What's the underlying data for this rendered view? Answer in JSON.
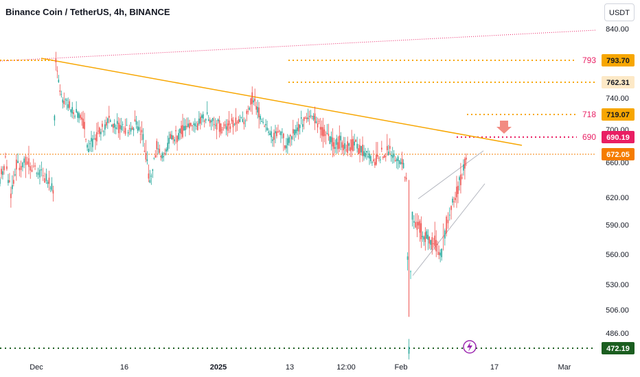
{
  "header": {
    "title": "Binance Coin / TetherUS, 4h, BINANCE",
    "currency": "USDT"
  },
  "chart_data": {
    "type": "candlestick",
    "symbol": "Binance Coin / TetherUS",
    "interval": "4h",
    "exchange": "BINANCE",
    "y_ticks": [
      "840.00",
      "740.00",
      "700.00",
      "660.00",
      "620.00",
      "590.00",
      "560.00",
      "530.00",
      "506.00",
      "486.00"
    ],
    "x_ticks": [
      "Dec",
      "16",
      "2025",
      "13",
      "12:00",
      "Feb",
      "17",
      "Mar"
    ],
    "price_labels": [
      {
        "value": "793.70",
        "bg": "#f7a600",
        "fg": "#131722"
      },
      {
        "value": "762.31",
        "bg": "#fde9c7",
        "fg": "#131722"
      },
      {
        "value": "719.07",
        "bg": "#f7a600",
        "fg": "#131722"
      },
      {
        "value": "690.19",
        "bg": "#e91e63",
        "fg": "#ffffff"
      },
      {
        "value": "672.05",
        "bg": "#f57c00",
        "fg": "#ffffff"
      },
      {
        "value": "472.19",
        "bg": "#1b5e20",
        "fg": "#ffffff"
      }
    ],
    "level_labels": [
      {
        "text": "793",
        "color": "#e91e63"
      },
      {
        "text": "718",
        "color": "#e91e63"
      },
      {
        "text": "690",
        "color": "#e91e63"
      }
    ],
    "current_price": 672.05,
    "low_price": 472.19,
    "colors": {
      "up": "#26a69a",
      "down": "#ef5350",
      "resistance": "#f7a600",
      "target": "#e91e63",
      "support": "#1b5e20"
    },
    "key_points": [
      {
        "time": "Dec",
        "close": 640
      },
      {
        "time": "Dec",
        "high": 793
      },
      {
        "time": "16",
        "close": 680
      },
      {
        "time": "2025",
        "close": 700
      },
      {
        "time": "13",
        "close": 705
      },
      {
        "time": "12:00",
        "close": 690
      },
      {
        "time": "Feb",
        "low": 500
      },
      {
        "time": "Feb",
        "close": 580
      },
      {
        "time": "Feb",
        "close": 672.05
      }
    ]
  }
}
